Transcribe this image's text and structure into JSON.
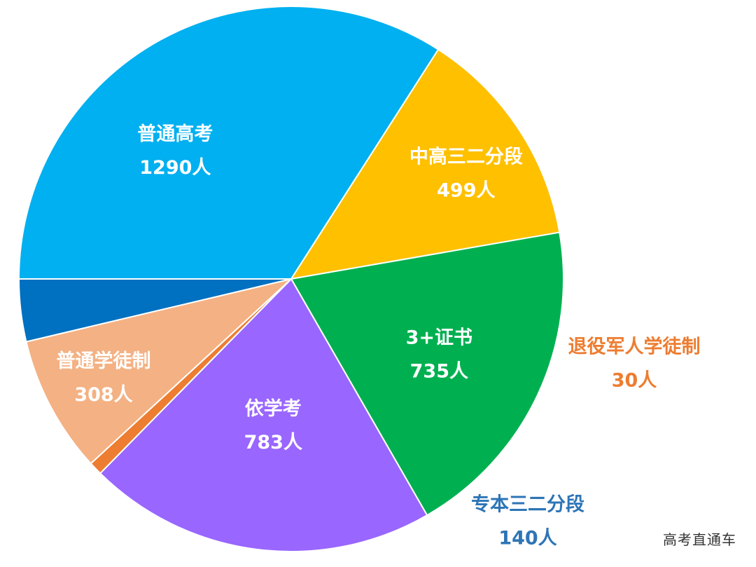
{
  "chart_data": {
    "type": "pie",
    "title": "",
    "unit": "人",
    "slices": [
      {
        "name": "普通高考",
        "value": 1290,
        "value_label": "1290人",
        "color": "#00B0F0",
        "label_color": "#FFFFFF",
        "label_position": "inside"
      },
      {
        "name": "中高三二分段",
        "value": 499,
        "value_label": "499人",
        "color": "#FFC000",
        "label_color": "#FFFFFF",
        "label_position": "inside"
      },
      {
        "name": "3+证书",
        "value": 735,
        "value_label": "735人",
        "color": "#00B050",
        "label_color": "#FFFFFF",
        "label_position": "inside"
      },
      {
        "name": "依学考",
        "value": 783,
        "value_label": "783人",
        "color": "#9966FF",
        "label_color": "#FFFFFF",
        "label_position": "inside"
      },
      {
        "name": "退役军人学徒制",
        "value": 30,
        "value_label": "30人",
        "color": "#ED7D31",
        "label_color": "#ED7D31",
        "label_position": "outside"
      },
      {
        "name": "普通学徒制",
        "value": 308,
        "value_label": "308人",
        "color": "#F4B183",
        "label_color": "#FFFFFF",
        "label_position": "inside"
      },
      {
        "name": "专本三二分段",
        "value": 140,
        "value_label": "140人",
        "color": "#0070C0",
        "label_color": "#2E75B6",
        "label_position": "outside"
      }
    ],
    "legend": "none"
  },
  "watermark": "高考直通车"
}
